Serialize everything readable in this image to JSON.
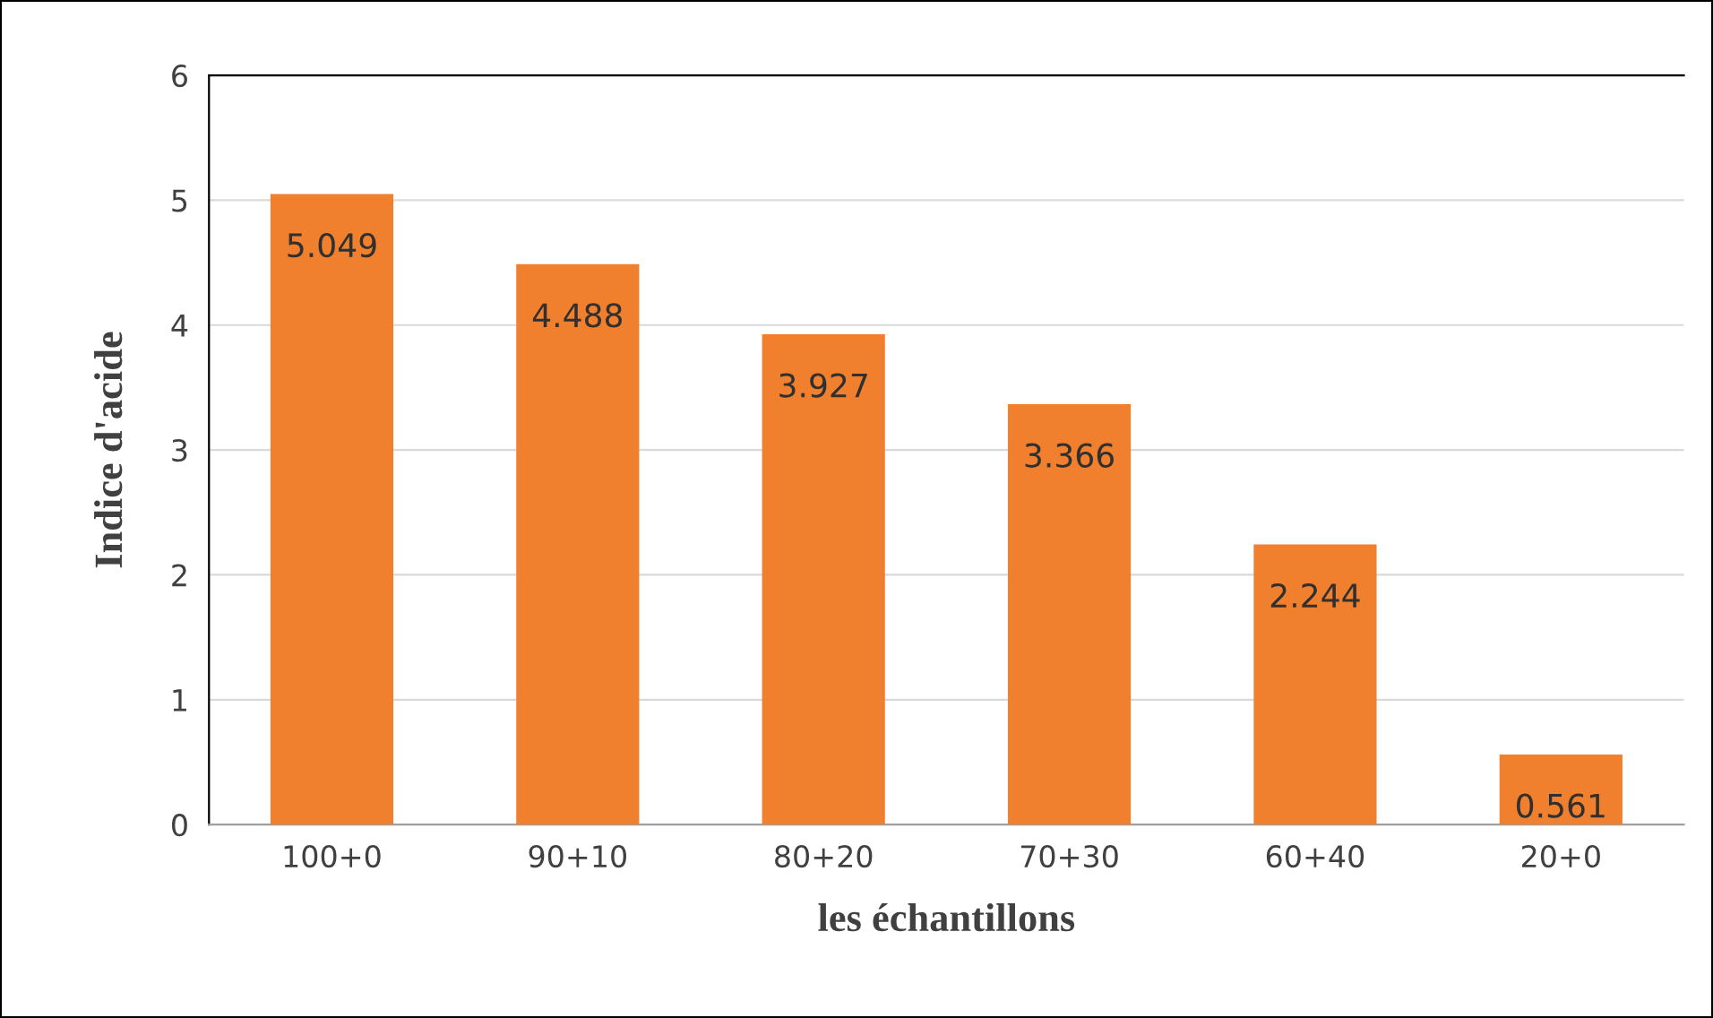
{
  "chart_data": {
    "type": "bar",
    "xlabel": "les échantillons",
    "ylabel": "Indice d'acide",
    "categories": [
      "100+0",
      "90+10",
      "80+20",
      "70+30",
      "60+40",
      "20+0"
    ],
    "values": [
      5.049,
      4.488,
      3.927,
      3.366,
      2.244,
      0.561
    ],
    "color": "#f07f2e",
    "ylim": [
      0,
      6
    ],
    "yticks": [
      0,
      1,
      2,
      3,
      4,
      5,
      6
    ],
    "grid": "y",
    "data_labels": true,
    "legend": false
  }
}
